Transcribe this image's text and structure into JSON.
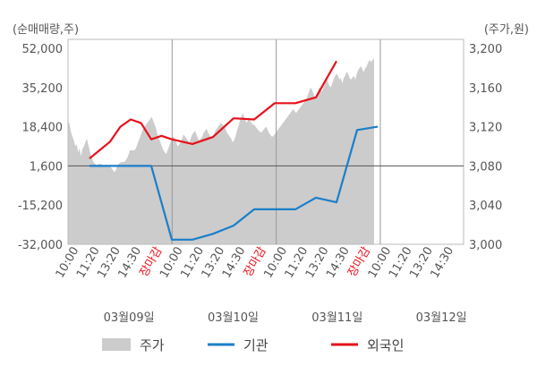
{
  "chart_data": {
    "type": "line",
    "left_axis_unit": "(순매매량,주)",
    "right_axis_unit": "(주가,원)",
    "left_ticks": [
      "52,000",
      "35,200",
      "18,400",
      "1,600",
      "-15,200",
      "-32,000"
    ],
    "right_ticks": [
      "3,200",
      "3,160",
      "3,120",
      "3,080",
      "3,040",
      "3,000"
    ],
    "left_range": [
      -32000,
      52000
    ],
    "right_range": [
      3000,
      3200
    ],
    "x_ticks": [
      "10:00",
      "11:20",
      "13:20",
      "14:30",
      "장마감",
      "10:00",
      "11:20",
      "13:20",
      "14:30",
      "장마감",
      "10:00",
      "11:20",
      "13:20",
      "14:30",
      "장마감",
      "10:00",
      "11:20",
      "13:20",
      "14:30"
    ],
    "close_label": "장마감",
    "dates": [
      "03월09일",
      "03월10일",
      "03월11일",
      "03월12일"
    ],
    "legend": [
      "주가",
      "기관",
      "외국인"
    ],
    "colors": {
      "price": "#cccccc",
      "inst": "#1a7fc9",
      "foreign": "#e8101a",
      "zero": "#555555"
    },
    "price": [
      3125,
      3123,
      3115,
      3110,
      3106,
      3100,
      3102,
      3094,
      3098,
      3090,
      3097,
      3100,
      3104,
      3108,
      3102,
      3096,
      3090,
      3086,
      3083,
      3082,
      3080,
      3082,
      3082,
      3082,
      3080,
      3080,
      3080,
      3080,
      3080,
      3080,
      3078,
      3076,
      3074,
      3075,
      3080,
      3082,
      3083,
      3084,
      3084,
      3084,
      3086,
      3088,
      3092,
      3096,
      3096,
      3096,
      3096,
      3098,
      3102,
      3106,
      3110,
      3114,
      3118,
      3120,
      3122,
      3124,
      3126,
      3128,
      3130,
      3126,
      3122,
      3118,
      3112,
      3108,
      3104,
      3100,
      3096,
      3094,
      3092,
      3096,
      3100,
      3104,
      3108,
      3110,
      3108,
      3104,
      3100,
      3102,
      3104,
      3108,
      3112,
      3110,
      3108,
      3106,
      3104,
      3108,
      3112,
      3114,
      3116,
      3112,
      3108,
      3106,
      3108,
      3110,
      3114,
      3116,
      3118,
      3114,
      3112,
      3108,
      3110,
      3112,
      3116,
      3118,
      3120,
      3122,
      3124,
      3122,
      3120,
      3118,
      3114,
      3112,
      3110,
      3108,
      3104,
      3106,
      3110,
      3116,
      3120,
      3126,
      3130,
      3134,
      3130,
      3126,
      3124,
      3128,
      3126,
      3124,
      3122,
      3122,
      3120,
      3118,
      3116,
      3115,
      3114,
      3116,
      3118,
      3120,
      3118,
      3114,
      3112,
      3110,
      3110,
      3112,
      3114,
      3116,
      3118,
      3120,
      3122,
      3124,
      3126,
      3128,
      3130,
      3132,
      3134,
      3136,
      3138,
      3136,
      3134,
      3136,
      3138,
      3140,
      3142,
      3144,
      3146,
      3148,
      3152,
      3156,
      3160,
      3158,
      3154,
      3150,
      3152,
      3156,
      3160,
      3158,
      3156,
      3160,
      3164,
      3168,
      3166,
      3162,
      3160,
      3164,
      3168,
      3172,
      3174,
      3172,
      3168,
      3170,
      3164,
      3170,
      3172,
      3176,
      3174,
      3170,
      3168,
      3170,
      3172,
      3168,
      3174,
      3178,
      3180,
      3182,
      3178,
      3176,
      3180,
      3182,
      3186,
      3188,
      3186,
      3188,
      3190
    ],
    "institution": [
      {
        "x": 0,
        "y": 1600
      },
      {
        "x": 3,
        "y": 1600
      },
      {
        "x": 4,
        "y": -30000
      },
      {
        "x": 5,
        "y": -30000
      },
      {
        "x": 6,
        "y": -27500
      },
      {
        "x": 7,
        "y": -24000
      },
      {
        "x": 8,
        "y": -17000
      },
      {
        "x": 9,
        "y": -17000
      },
      {
        "x": 10,
        "y": -17000
      },
      {
        "x": 11,
        "y": -12000
      },
      {
        "x": 12,
        "y": -14000
      },
      {
        "x": 13,
        "y": 17000
      },
      {
        "x": 14,
        "y": 18400
      }
    ],
    "foreign": [
      {
        "x": 0,
        "y": 4800
      },
      {
        "x": 1,
        "y": 12000
      },
      {
        "x": 1.5,
        "y": 18400
      },
      {
        "x": 2,
        "y": 21500
      },
      {
        "x": 2.5,
        "y": 20000
      },
      {
        "x": 3,
        "y": 13000
      },
      {
        "x": 3.5,
        "y": 14500
      },
      {
        "x": 4,
        "y": 13000
      },
      {
        "x": 5,
        "y": 11000
      },
      {
        "x": 6,
        "y": 14000
      },
      {
        "x": 7,
        "y": 22000
      },
      {
        "x": 8,
        "y": 21500
      },
      {
        "x": 9,
        "y": 28500
      },
      {
        "x": 10,
        "y": 28500
      },
      {
        "x": 11,
        "y": 31000
      },
      {
        "x": 12,
        "y": 46500
      }
    ]
  }
}
